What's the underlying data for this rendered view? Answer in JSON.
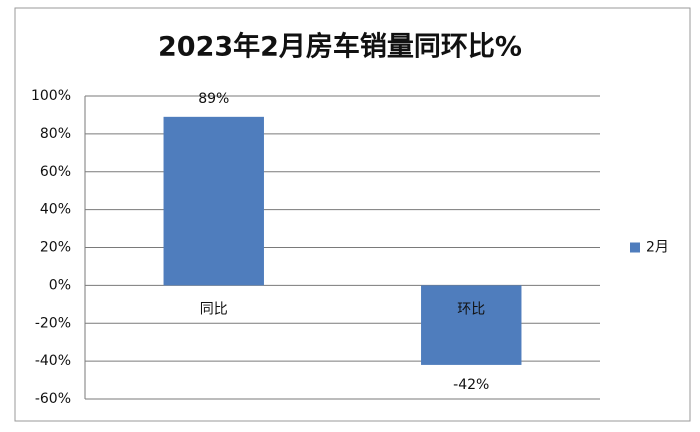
{
  "chart_data": {
    "type": "bar",
    "title": "2023年2月房车销量同环比%",
    "categories": [
      "同比",
      "环比"
    ],
    "series": [
      {
        "name": "2月",
        "color": "#4f7dbd",
        "values": [
          89,
          -42
        ],
        "value_labels": [
          "89%",
          "-42%"
        ]
      }
    ],
    "ylim": [
      -60,
      100
    ],
    "yticks": [
      {
        "value": -60,
        "label": "-60%"
      },
      {
        "value": -40,
        "label": "-40%"
      },
      {
        "value": -20,
        "label": "-20%"
      },
      {
        "value": 0,
        "label": "0%"
      },
      {
        "value": 20,
        "label": "20%"
      },
      {
        "value": 40,
        "label": "40%"
      },
      {
        "value": 60,
        "label": "60%"
      },
      {
        "value": 80,
        "label": "80%"
      },
      {
        "value": 100,
        "label": "100%"
      }
    ],
    "grid": true,
    "legend": "right"
  }
}
